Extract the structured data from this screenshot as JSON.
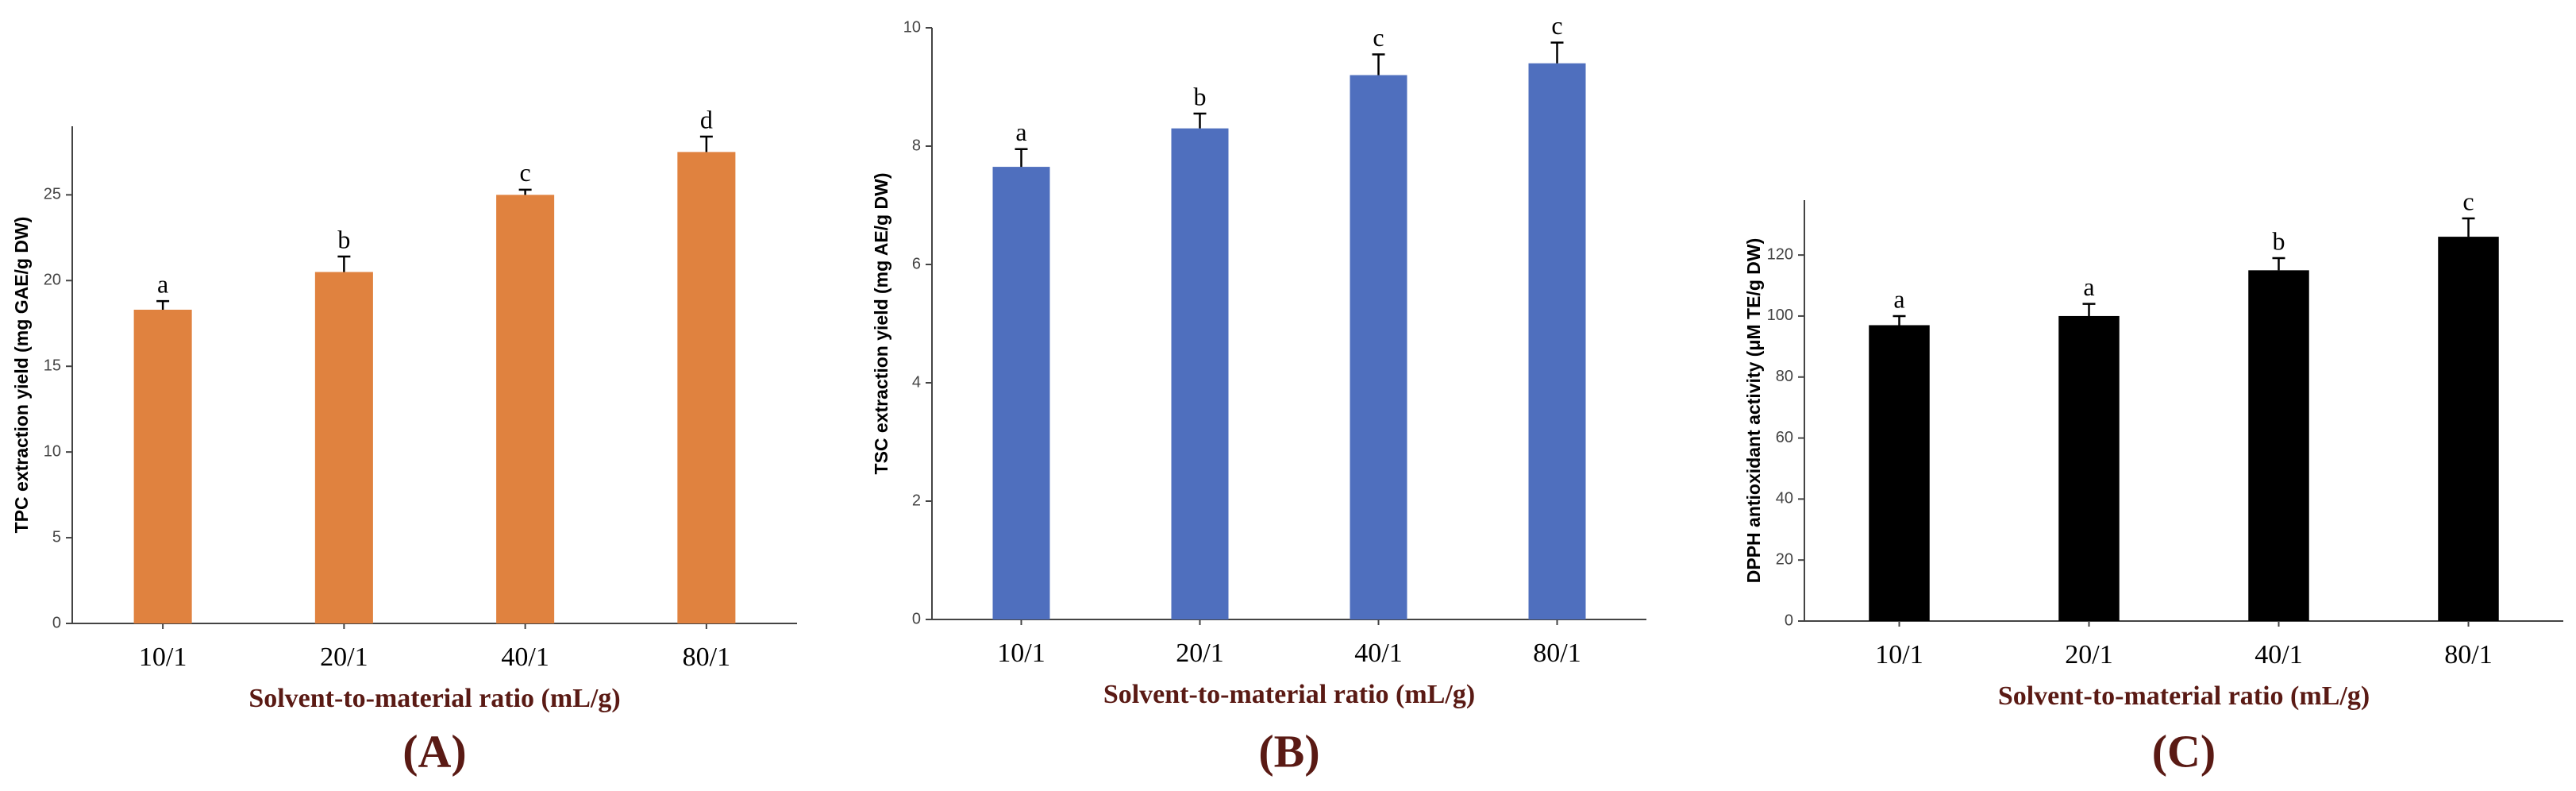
{
  "chart_data": [
    {
      "type": "bar",
      "panel_label": "(A)",
      "x_label": "Solvent-to-material ratio (mL/g)",
      "y_label": "TPC extraction yield (mg GAE/g DW)",
      "categories": [
        "10/1",
        "20/1",
        "40/1",
        "80/1"
      ],
      "values": [
        18.3,
        20.5,
        25,
        27.5
      ],
      "errors": [
        0.5,
        0.9,
        0.3,
        0.9
      ],
      "letters": [
        "a",
        "b",
        "c",
        "d"
      ],
      "color": "#e0823f",
      "ylim": [
        0,
        29
      ],
      "yticks": [
        0,
        5,
        10,
        15,
        20,
        25
      ]
    },
    {
      "type": "bar",
      "panel_label": "(B)",
      "x_label": "Solvent-to-material ratio (mL/g)",
      "y_label": "TSC extraction yield (mg AE/g DW)",
      "categories": [
        "10/1",
        "20/1",
        "40/1",
        "80/1"
      ],
      "values": [
        7.65,
        8.3,
        9.2,
        9.4
      ],
      "errors": [
        0.3,
        0.25,
        0.35,
        0.35
      ],
      "letters": [
        "a",
        "b",
        "c",
        "c"
      ],
      "color": "#4f6fbe",
      "ylim": [
        0,
        10
      ],
      "yticks": [
        0,
        2,
        4,
        6,
        8,
        10
      ]
    },
    {
      "type": "bar",
      "panel_label": "(C)",
      "x_label": "Solvent-to-material ratio (mL/g)",
      "y_label": "DPPH antioxidant activity  (μM TE/g DW)",
      "categories": [
        "10/1",
        "20/1",
        "40/1",
        "80/1"
      ],
      "values": [
        97,
        100,
        115,
        126
      ],
      "errors": [
        3,
        4,
        4,
        6
      ],
      "letters": [
        "a",
        "a",
        "b",
        "c"
      ],
      "color": "#000000",
      "ylim": [
        0,
        138
      ],
      "yticks": [
        0,
        20,
        40,
        60,
        80,
        100,
        120
      ]
    }
  ]
}
